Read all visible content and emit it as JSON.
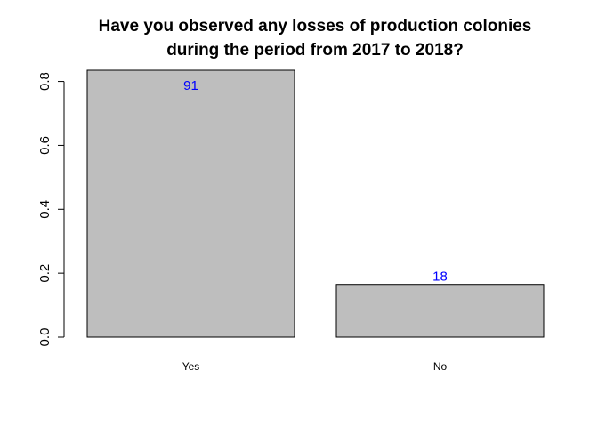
{
  "chart_data": {
    "type": "bar",
    "title": [
      "Have you observed any losses of production colonies",
      "during the period from 2017 to 2018?"
    ],
    "xlabel": "",
    "ylabel": "",
    "categories": [
      "Yes",
      "No"
    ],
    "values": [
      0.835,
      0.165
    ],
    "data_labels": [
      "91",
      "18"
    ],
    "yticks": [
      "0.0",
      "0.2",
      "0.4",
      "0.6",
      "0.8"
    ],
    "ytick_values": [
      0,
      0.2,
      0.4,
      0.6,
      0.8
    ],
    "ylim": [
      0,
      0.835
    ],
    "grid": false,
    "colors": {
      "bar_fill": "#bebebe",
      "bar_stroke": "#000000",
      "data_label": "#0000ff",
      "axis": "#000000"
    }
  }
}
